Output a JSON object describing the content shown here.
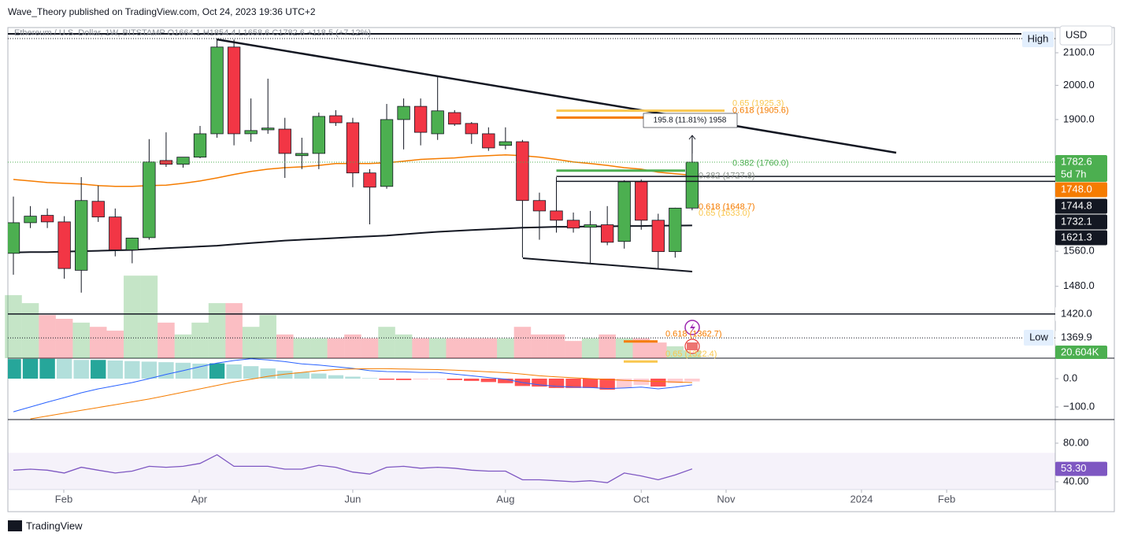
{
  "header": {
    "publisher": "Wave_Theory published on TradingView.com, Oct 24, 2023 19:36 UTC+2",
    "legend": "Ethereum / U.S. Dollar, 1W, BITSTAMP  O1664.1  H1854.4  L1658.6  C1782.6  +118.5 (+7.12%)",
    "currency": "USD",
    "high_label": "High",
    "low_label": "Low",
    "measure": "195.8 (11.81%) 1958",
    "footer": "TradingView"
  },
  "chart_data": [
    {
      "type": "candlestick",
      "up_color": "#4caf50",
      "down_color": "#f23645",
      "log_scale": true,
      "ylim": [
        1329,
        2168
      ],
      "yticks": [
        {
          "value": 1480,
          "label": "1480.0"
        },
        {
          "value": 1560,
          "label": "1560.0"
        },
        {
          "value": 1900,
          "label": "1900.0"
        },
        {
          "value": 2000,
          "label": "2000.0"
        },
        {
          "value": 2100,
          "label": "2100.0"
        }
      ],
      "xlim": [
        -0.325,
        61.4
      ],
      "xticks": [
        {
          "value": 2.97,
          "label": "Feb"
        },
        {
          "value": 10.95,
          "label": "Apr"
        },
        {
          "value": 20,
          "label": "Jun"
        },
        {
          "value": 29,
          "label": "Aug"
        },
        {
          "value": 37,
          "label": "Oct"
        },
        {
          "value": 42,
          "label": "Nov"
        },
        {
          "value": 49.98,
          "label": "2024"
        },
        {
          "value": 55,
          "label": "Feb"
        }
      ],
      "open": [
        1555,
        1628,
        1646,
        1630,
        1516,
        1681,
        1642,
        1563,
        1592,
        1787,
        1777,
        1796,
        1860,
        2118,
        1860,
        1871,
        1873,
        1800,
        1806,
        1911,
        1891,
        1754,
        1719,
        1900,
        1938,
        1860,
        1920,
        1889,
        1860,
        1828,
        1838,
        1683,
        1657,
        1634,
        1617,
        1623,
        1583,
        1731,
        1634,
        1559,
        1664.1
      ],
      "high": [
        1693,
        1669,
        1663,
        1644,
        1743,
        1721,
        1663,
        1592,
        1845,
        1864,
        1796,
        1882,
        2142,
        2142,
        1961,
        2020,
        1905,
        1849,
        1920,
        1927,
        1905,
        1764,
        1945,
        1961,
        1961,
        2027,
        1927,
        1893,
        1878,
        1878,
        1843,
        1703,
        1743,
        1653,
        1657,
        1669,
        1735,
        1737,
        1650,
        1665,
        1854.4
      ],
      "low": [
        1506,
        1615,
        1615,
        1497,
        1466,
        1630,
        1548,
        1532,
        1587,
        1770,
        1768,
        1793,
        1849,
        1828,
        1838,
        1860,
        1741,
        1764,
        1764,
        1882,
        1717,
        1624,
        1713,
        1817,
        1828,
        1843,
        1882,
        1832,
        1813,
        1817,
        1545,
        1587,
        1604,
        1604,
        1532,
        1574,
        1566,
        1611,
        1520,
        1545,
        1658.6
      ],
      "close": [
        1628,
        1644,
        1630,
        1520,
        1683,
        1642,
        1563,
        1591,
        1783,
        1777,
        1796,
        1860,
        2118,
        1860,
        1869,
        1876,
        1806,
        1806,
        1909,
        1891,
        1754,
        1717,
        1900,
        1938,
        1864,
        1925,
        1887,
        1860,
        1821,
        1838,
        1683,
        1657,
        1634,
        1615,
        1623,
        1581,
        1731,
        1634,
        1559,
        1664,
        1782.6
      ],
      "overlays": [
        {
          "color": "#f57c00",
          "values": [
            1737,
            1733,
            1729,
            1727,
            1725,
            1721,
            1719,
            1719,
            1721,
            1722,
            1727,
            1733,
            1741,
            1750,
            1758,
            1764,
            1768,
            1770,
            1774,
            1779,
            1779,
            1779,
            1781,
            1785,
            1790,
            1792,
            1794,
            1798,
            1800,
            1802,
            1800,
            1796,
            1790,
            1783,
            1779,
            1774,
            1768,
            1764,
            1756,
            1752,
            1748
          ]
        },
        {
          "color": "#131722",
          "values": [
            1557,
            1558,
            1558,
            1559,
            1560,
            1561,
            1562,
            1563,
            1565,
            1567,
            1569,
            1571,
            1573,
            1576,
            1579,
            1582,
            1585,
            1587,
            1589,
            1591,
            1593,
            1595,
            1597,
            1600,
            1603,
            1606,
            1608,
            1610,
            1612,
            1614,
            1616,
            1617,
            1618,
            1618,
            1619,
            1619,
            1620,
            1620,
            1621,
            1621,
            1621.3
          ]
        }
      ],
      "fibs": [
        {
          "value": 1925.3,
          "label": "0.65 (1925.3)",
          "color": "#f9c74f"
        },
        {
          "value": 1905.6,
          "label": "0.618 (1905.6)",
          "color": "#f57c00"
        },
        {
          "value": 1760,
          "label": "0.382 (1760.0)",
          "color": "#4caf50"
        },
        {
          "value": 1727.8,
          "label": "0.382 (1727.8)",
          "color": "#8a938a"
        },
        {
          "value": 1648.7,
          "label": "0.618 (1648.7)",
          "color": "#f57c00"
        },
        {
          "value": 1633,
          "label": "0.65 (1633.0)",
          "color": "#f9c74f"
        },
        {
          "value": 1362.7,
          "label": "0.618 (1362.7)",
          "color": "#f57c00"
        },
        {
          "value": 1322.4,
          "label": "0.65 (1322.4)",
          "color": "#f9c74f"
        }
      ],
      "price_labels": [
        {
          "value": 1782.6,
          "label": "1782.6",
          "sub": "5d 7h",
          "color": "#4caf50"
        },
        {
          "value": 1748,
          "label": "1748.0",
          "color": "#f57c00"
        },
        {
          "value": 1744.8,
          "label": "1744.8",
          "color": "#131722"
        },
        {
          "value": 1732.1,
          "label": "1732.1",
          "color": "#131722"
        },
        {
          "value": 1621.3,
          "label": "1621.3",
          "color": "#131722"
        },
        {
          "value": 1420,
          "label": "1420.0",
          "color": "#ffffff"
        },
        {
          "value": 1369.9,
          "label": "1369.9",
          "color": "#ffffff"
        }
      ]
    },
    {
      "type": "volume",
      "up_color": "#4caf50",
      "down_color": "#f23645",
      "ylim": [
        0,
        226.6
      ],
      "values": [
        165,
        144,
        113,
        103,
        93,
        82,
        72,
        216,
        216,
        93,
        62,
        93,
        144,
        144,
        82,
        113,
        62,
        52,
        52,
        52,
        62,
        52,
        82,
        62,
        52,
        52,
        52,
        52,
        52,
        52,
        82,
        62,
        62,
        45,
        52,
        62,
        52,
        52,
        41,
        31,
        20.604
      ],
      "last_label": {
        "value": 20.604,
        "label": "20.604K"
      }
    },
    {
      "type": "macd",
      "ylim": [
        -144.4,
        72.2
      ],
      "yticks": [
        {
          "value": 0,
          "label": "0.0"
        },
        {
          "value": -100,
          "label": "−100.0"
        }
      ],
      "histogram": [
        69,
        70,
        70,
        69,
        66,
        66,
        64,
        62,
        60,
        58,
        56,
        53,
        54,
        50,
        44,
        36,
        28,
        22,
        18,
        12,
        7,
        2,
        -4,
        -5,
        -3,
        -2,
        -5,
        -8,
        -12,
        -16,
        -26,
        -28,
        -33,
        -33,
        -33,
        -39,
        -33,
        -22,
        -28,
        -16,
        -10
      ],
      "macd": [
        -117,
        -100,
        -83,
        -67,
        -50,
        -36,
        -25,
        -14,
        0,
        15,
        28,
        42,
        55,
        64,
        70,
        66,
        60,
        52,
        48,
        42,
        36,
        28,
        25,
        24,
        22,
        22,
        16,
        10,
        4,
        -2,
        -14,
        -22,
        -27,
        -30,
        -31,
        -35,
        -33,
        -30,
        -36,
        -30,
        -22
      ],
      "signal": [
        null,
        -142,
        -132,
        -122,
        -112,
        -102,
        -92,
        -82,
        -72,
        -60,
        -48,
        -36,
        -24,
        -12,
        -2,
        8,
        16,
        22,
        28,
        32,
        34,
        35,
        35,
        34,
        33,
        32,
        30,
        27,
        24,
        21,
        16,
        10,
        6,
        3,
        0,
        -3,
        -6,
        -8,
        -10,
        -12,
        -14
      ],
      "macd_color": "#2962ff",
      "signal_color": "#f57c00"
    },
    {
      "type": "rsi",
      "color": "#7e57c2",
      "ylim": [
        31.8,
        104.5
      ],
      "band": [
        30,
        70
      ],
      "yticks": [
        {
          "value": 80,
          "label": "80.00"
        },
        {
          "value": 40,
          "label": "40.00"
        }
      ],
      "values": [
        52,
        53,
        52,
        49,
        55,
        52,
        49,
        51,
        56,
        55,
        56,
        59,
        68,
        56,
        56,
        56,
        53,
        53,
        57,
        55,
        50,
        48,
        55,
        56,
        54,
        55,
        54,
        52,
        51,
        51,
        42,
        42,
        41,
        40,
        41,
        39,
        49,
        46,
        42,
        47,
        53.3
      ],
      "last_label": {
        "value": 53.3,
        "label": "53.30"
      }
    }
  ]
}
